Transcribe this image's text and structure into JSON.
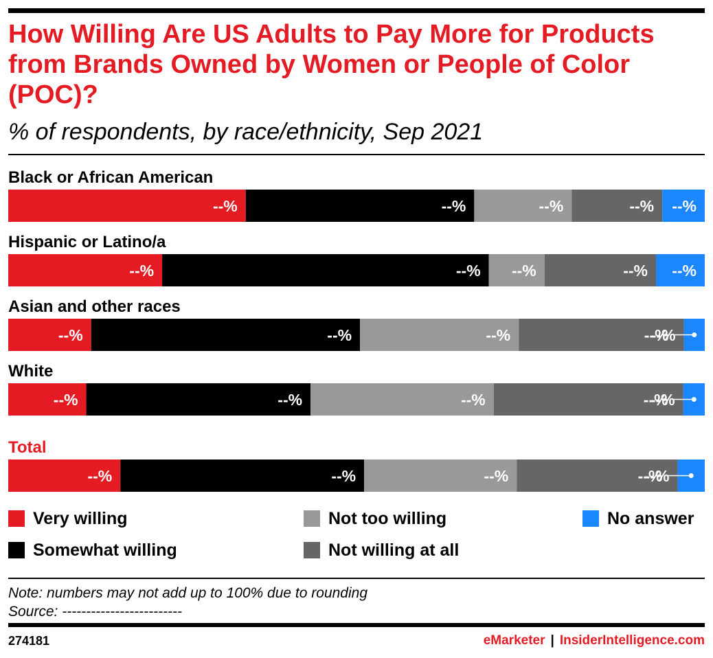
{
  "header": {
    "title": "How Willing Are US Adults to Pay More for Products from Brands Owned by Women or People of Color (POC)?",
    "subtitle": "% of respondents, by race/ethnicity, Sep 2021"
  },
  "chart_data": {
    "type": "bar",
    "orientation": "horizontal",
    "stacked": true,
    "title": "How Willing Are US Adults to Pay More for Products from Brands Owned by Women or People of Color (POC)?",
    "subtitle": "% of respondents, by race/ethnicity, Sep 2021",
    "categories": [
      "Black or African American",
      "Hispanic or Latino/a",
      "Asian and other races",
      "White",
      "Total"
    ],
    "highlight_category": "Total",
    "value_labels": "--%",
    "xlim": [
      0,
      100
    ],
    "legend_position": "bottom",
    "series": [
      {
        "name": "Very willing",
        "color": "#e41b23",
        "values": [
          34.1,
          22.1,
          11.9,
          11.2,
          16.1
        ]
      },
      {
        "name": "Somewhat willing",
        "color": "#000000",
        "values": [
          32.8,
          46.9,
          38.6,
          32.2,
          35.0
        ]
      },
      {
        "name": "Not too willing",
        "color": "#999999",
        "values": [
          14.0,
          8.0,
          22.8,
          26.3,
          21.9
        ]
      },
      {
        "name": "Not willing at all",
        "color": "#666666",
        "values": [
          13.0,
          16.0,
          23.7,
          27.2,
          23.1
        ]
      },
      {
        "name": "No answer",
        "color": "#1a87ff",
        "values": [
          6.1,
          7.0,
          3.0,
          3.1,
          3.9
        ]
      }
    ]
  },
  "legend": {
    "items": [
      {
        "label": "Very willing",
        "color": "#e41b23"
      },
      {
        "label": "Somewhat willing",
        "color": "#000000"
      },
      {
        "label": "Not too willing",
        "color": "#999999"
      },
      {
        "label": "Not willing at all",
        "color": "#666666"
      },
      {
        "label": "No answer",
        "color": "#1a87ff"
      }
    ]
  },
  "footer": {
    "note": "Note: numbers may not add up to 100% due to rounding",
    "source": "Source: -------------------------",
    "chart_id": "274181",
    "brand_a": "eMarketer",
    "brand_sep": "|",
    "brand_b": "InsiderIntelligence.com"
  }
}
